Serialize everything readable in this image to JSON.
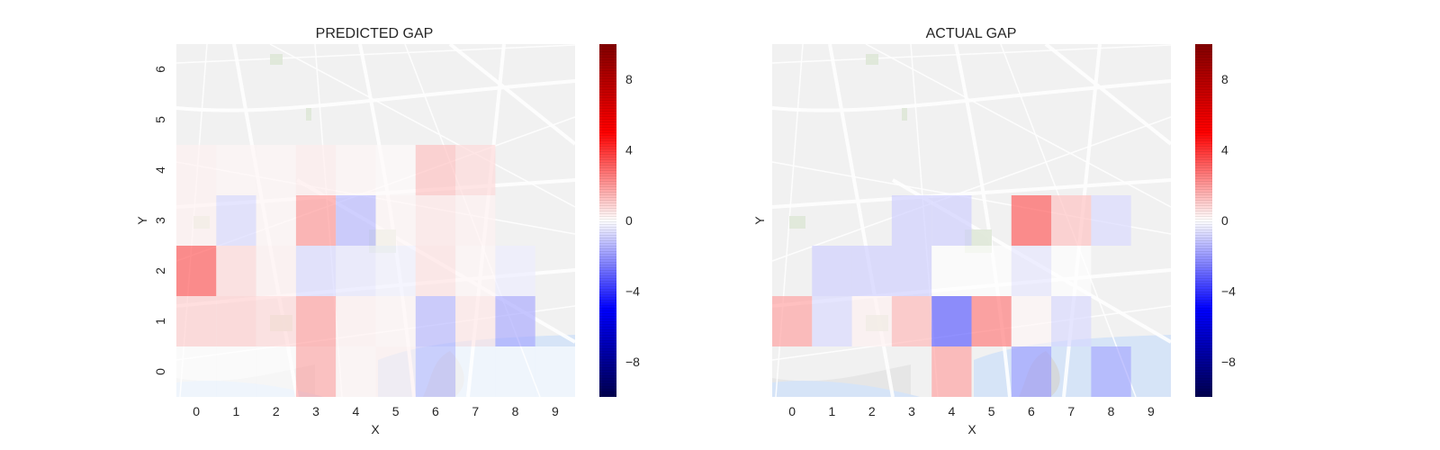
{
  "colors": {
    "colormap": "seismic",
    "map_background": "#f1f1f1",
    "water": "#d6e4f7",
    "roads": "#ffffff"
  },
  "chart_data": [
    {
      "type": "heatmap",
      "title": "PREDICTED GAP",
      "xlabel": "X",
      "ylabel": "Y",
      "x_ticks": [
        "0",
        "1",
        "2",
        "3",
        "4",
        "5",
        "6",
        "7",
        "8",
        "9"
      ],
      "y_ticks": [
        "0",
        "1",
        "2",
        "3",
        "4",
        "5",
        "6"
      ],
      "xlim": [
        -0.5,
        9.5
      ],
      "ylim": [
        -0.5,
        6.5
      ],
      "colorbar": {
        "vmin": -10,
        "vmax": 10,
        "ticks": [
          -8,
          -4,
          0,
          4,
          8
        ],
        "tick_labels": [
          "−8",
          "−4",
          "0",
          "4",
          "8"
        ]
      },
      "background": "street map",
      "grid": false,
      "cells": [
        {
          "x": 0,
          "y": 0,
          "v": 0
        },
        {
          "x": 1,
          "y": 0,
          "v": 0
        },
        {
          "x": 2,
          "y": 0,
          "v": 0
        },
        {
          "x": 3,
          "y": 0,
          "v": 1.8
        },
        {
          "x": 4,
          "y": 0,
          "v": 0.2
        },
        {
          "x": 5,
          "y": 0,
          "v": 0.3
        },
        {
          "x": 6,
          "y": 0,
          "v": -1.2
        },
        {
          "x": 7,
          "y": 0,
          "v": 0
        },
        {
          "x": 8,
          "y": 0,
          "v": 0
        },
        {
          "x": 9,
          "y": 0,
          "v": 0
        },
        {
          "x": 0,
          "y": 1,
          "v": 1.0
        },
        {
          "x": 1,
          "y": 1,
          "v": 1.0
        },
        {
          "x": 2,
          "y": 1,
          "v": 0.8
        },
        {
          "x": 3,
          "y": 1,
          "v": 2.0
        },
        {
          "x": 4,
          "y": 1,
          "v": 0.3
        },
        {
          "x": 5,
          "y": 1,
          "v": 0.2
        },
        {
          "x": 6,
          "y": 1,
          "v": -1.5
        },
        {
          "x": 7,
          "y": 1,
          "v": 0.5
        },
        {
          "x": 8,
          "y": 1,
          "v": -1.8
        },
        {
          "x": 0,
          "y": 2,
          "v": 3.5
        },
        {
          "x": 1,
          "y": 2,
          "v": 0.8
        },
        {
          "x": 2,
          "y": 2,
          "v": 0.3
        },
        {
          "x": 3,
          "y": 2,
          "v": -0.8
        },
        {
          "x": 4,
          "y": 2,
          "v": -0.5
        },
        {
          "x": 5,
          "y": 2,
          "v": -0.3
        },
        {
          "x": 6,
          "y": 2,
          "v": 0.6
        },
        {
          "x": 7,
          "y": 2,
          "v": 0.2
        },
        {
          "x": 8,
          "y": 2,
          "v": -0.4
        },
        {
          "x": 0,
          "y": 3,
          "v": 0.3
        },
        {
          "x": 1,
          "y": 3,
          "v": -0.8
        },
        {
          "x": 2,
          "y": 3,
          "v": 0.2
        },
        {
          "x": 3,
          "y": 3,
          "v": 2.2
        },
        {
          "x": 4,
          "y": 3,
          "v": -1.5
        },
        {
          "x": 5,
          "y": 3,
          "v": 0.2
        },
        {
          "x": 6,
          "y": 3,
          "v": 0.5
        },
        {
          "x": 7,
          "y": 3,
          "v": 0.3
        },
        {
          "x": 0,
          "y": 4,
          "v": 0.3
        },
        {
          "x": 1,
          "y": 4,
          "v": 0.2
        },
        {
          "x": 2,
          "y": 4,
          "v": 0.2
        },
        {
          "x": 3,
          "y": 4,
          "v": 0.4
        },
        {
          "x": 4,
          "y": 4,
          "v": 0.2
        },
        {
          "x": 5,
          "y": 4,
          "v": 0.1
        },
        {
          "x": 6,
          "y": 4,
          "v": 1.3
        },
        {
          "x": 7,
          "y": 4,
          "v": 0.8
        }
      ]
    },
    {
      "type": "heatmap",
      "title": "ACTUAL GAP",
      "xlabel": "X",
      "ylabel": "Y",
      "x_ticks": [
        "0",
        "1",
        "2",
        "3",
        "4",
        "5",
        "6",
        "7",
        "8",
        "9"
      ],
      "y_ticks": [],
      "xlim": [
        -0.5,
        9.5
      ],
      "ylim": [
        -0.5,
        6.5
      ],
      "colorbar": {
        "vmin": -10,
        "vmax": 10,
        "ticks": [
          -8,
          -4,
          0,
          4,
          8
        ],
        "tick_labels": [
          "−8",
          "−4",
          "0",
          "4",
          "8"
        ]
      },
      "background": "street map",
      "grid": false,
      "cells": [
        {
          "x": 4,
          "y": 0,
          "v": 2.0
        },
        {
          "x": 6,
          "y": 0,
          "v": -2.0
        },
        {
          "x": 8,
          "y": 0,
          "v": -1.8
        },
        {
          "x": 0,
          "y": 1,
          "v": 2.0
        },
        {
          "x": 1,
          "y": 1,
          "v": -0.8
        },
        {
          "x": 2,
          "y": 1,
          "v": 0.3
        },
        {
          "x": 3,
          "y": 1,
          "v": 1.5
        },
        {
          "x": 4,
          "y": 1,
          "v": -3.5
        },
        {
          "x": 5,
          "y": 1,
          "v": 2.8
        },
        {
          "x": 6,
          "y": 1,
          "v": 0.2
        },
        {
          "x": 7,
          "y": 1,
          "v": -0.8
        },
        {
          "x": 1,
          "y": 2,
          "v": -1.0
        },
        {
          "x": 2,
          "y": 2,
          "v": -1.0
        },
        {
          "x": 3,
          "y": 2,
          "v": -1.0
        },
        {
          "x": 4,
          "y": 2,
          "v": 0
        },
        {
          "x": 5,
          "y": 2,
          "v": 0
        },
        {
          "x": 6,
          "y": 2,
          "v": -0.5
        },
        {
          "x": 7,
          "y": 2,
          "v": 0
        },
        {
          "x": 3,
          "y": 3,
          "v": -1.0
        },
        {
          "x": 4,
          "y": 3,
          "v": -1.0
        },
        {
          "x": 6,
          "y": 3,
          "v": 3.5
        },
        {
          "x": 7,
          "y": 3,
          "v": 1.3
        },
        {
          "x": 8,
          "y": 3,
          "v": -0.8
        }
      ]
    }
  ]
}
